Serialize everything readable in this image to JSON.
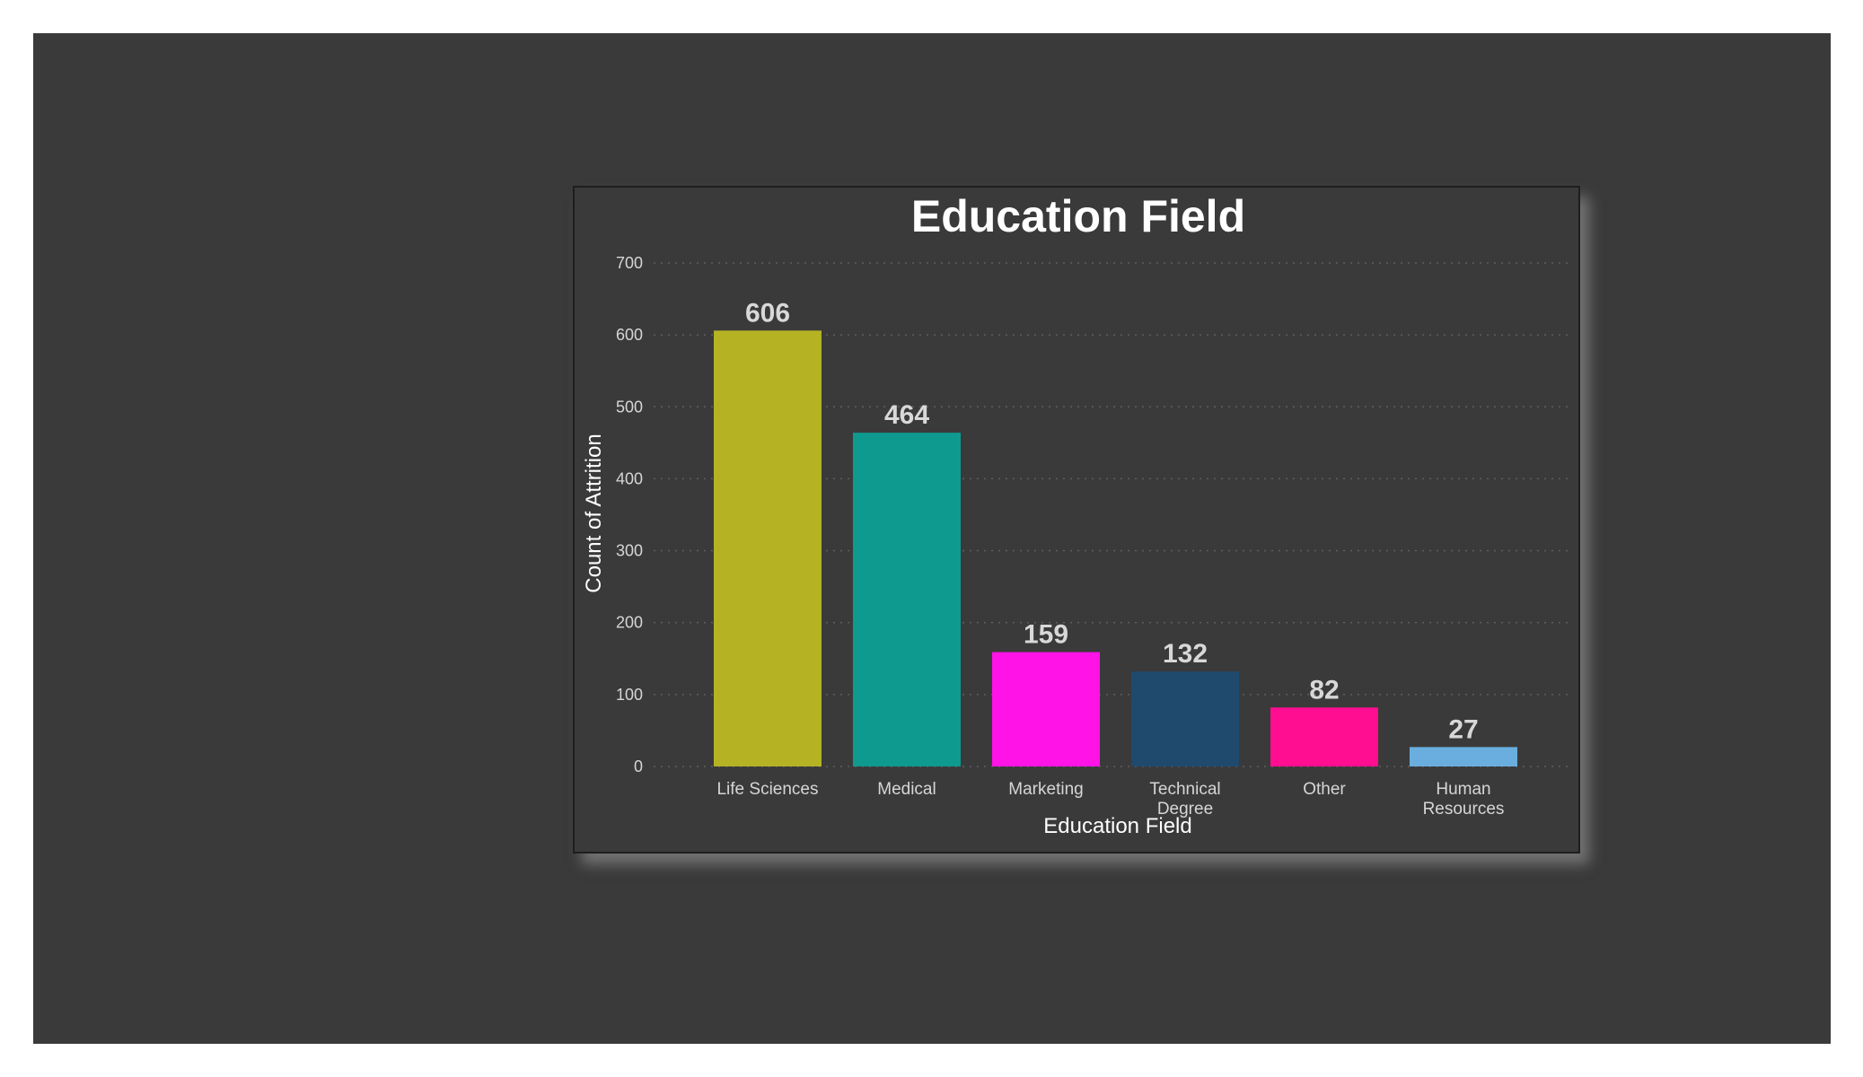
{
  "chart_data": {
    "type": "bar",
    "title": "Education Field",
    "xlabel": "Education Field",
    "ylabel": "Count of Attrition",
    "categories": [
      [
        "Life Sciences"
      ],
      [
        "Medical"
      ],
      [
        "Marketing"
      ],
      [
        "Technical",
        "Degree"
      ],
      [
        "Other"
      ],
      [
        "Human",
        "Resources"
      ]
    ],
    "values": [
      606,
      464,
      159,
      132,
      82,
      27
    ],
    "colors": [
      "#b5b324",
      "#0f9a8f",
      "#ff13e6",
      "#1f4a6e",
      "#ff0e92",
      "#6aaee0"
    ],
    "ylim": [
      0,
      700
    ],
    "yticks": [
      0,
      100,
      200,
      300,
      400,
      500,
      600,
      700
    ],
    "grid": true,
    "legend": "none",
    "data_labels": true
  }
}
